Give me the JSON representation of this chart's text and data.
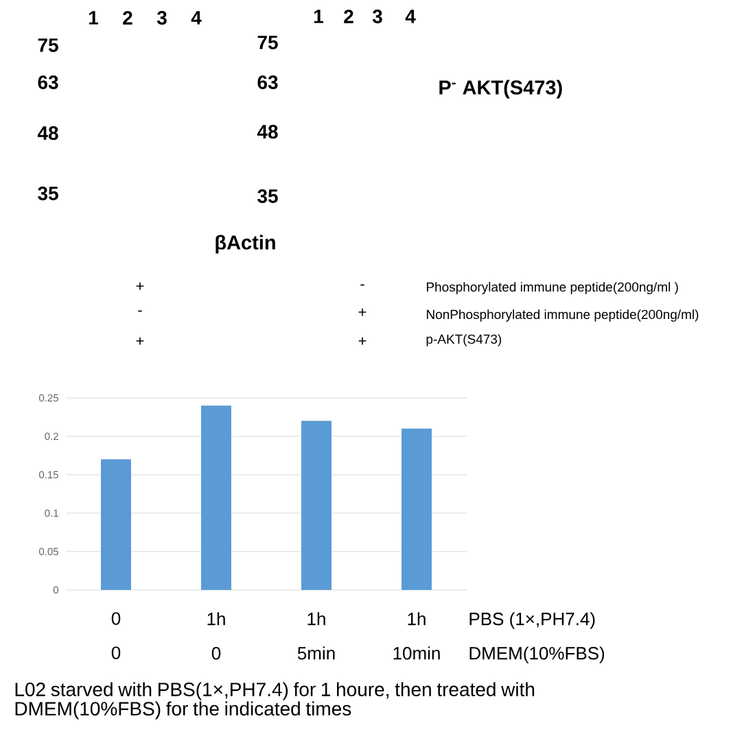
{
  "chart_data": {
    "type": "bar",
    "categories": [
      "0\n0",
      "1h\n0",
      "1h\n5min",
      "1h\n10min"
    ],
    "values": [
      0.17,
      0.24,
      0.22,
      0.21
    ],
    "color": "#5b9bd5",
    "ylim": [
      0,
      0.25
    ],
    "yticks": [
      0,
      0.05,
      0.1,
      0.15,
      0.2,
      0.25
    ],
    "grid": "y",
    "xlabel": "PBS (1×,PH7.4)\nDMEM(10%FBS)",
    "annotations": [
      "1",
      "2",
      "3",
      "4",
      "75",
      "63",
      "48",
      "35",
      "1",
      "2",
      "3",
      "4",
      "75",
      "63",
      "48",
      "35",
      "P$^{-}$ AKT(S473)",
      "βActin",
      "+",
      "-",
      "Phosphorylated immune peptide(200ng/ml )",
      "-",
      "+",
      "NonPhosphorylated immune peptide(200ng/ml)",
      "+",
      "+",
      "p-AKT(S473)",
      "L02 starved with PBS(1×,PH7.4) for 1 houre, then treated with DMEM(10%FBS) for the indicated times"
    ]
  }
}
